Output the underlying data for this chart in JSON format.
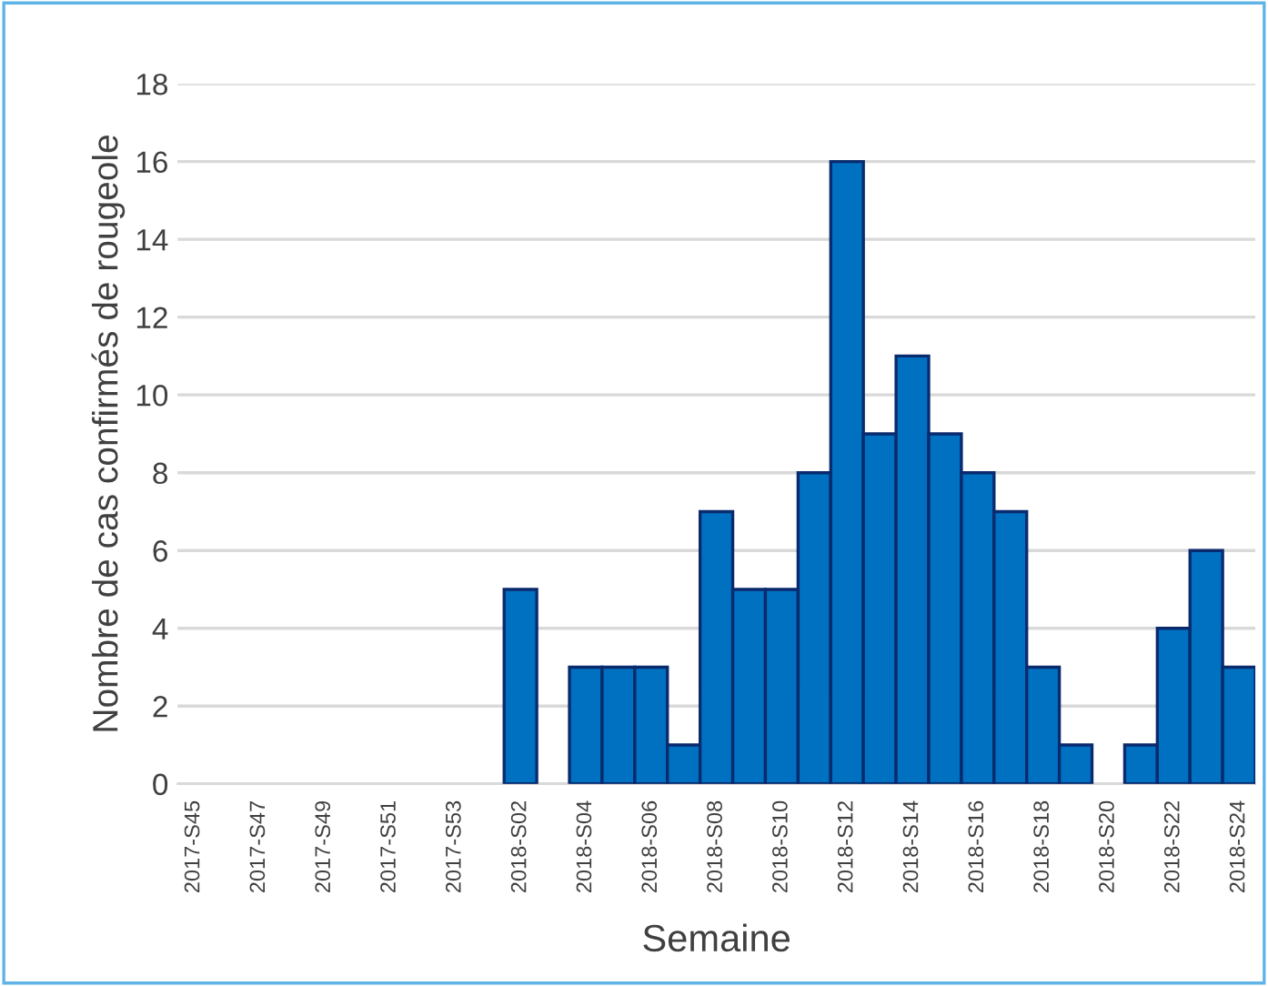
{
  "chart_data": {
    "type": "bar",
    "xlabel": "Semaine",
    "ylabel": "Nombre de cas confirmés de rougeole",
    "categories": [
      "2017-S45",
      null,
      "2017-S47",
      null,
      "2017-S49",
      null,
      "2017-S51",
      null,
      "2017-S53",
      null,
      "2018-S02",
      null,
      "2018-S04",
      null,
      "2018-S06",
      null,
      "2018-S08",
      null,
      "2018-S10",
      null,
      "2018-S12",
      null,
      "2018-S14",
      null,
      "2018-S16",
      null,
      "2018-S18",
      null,
      "2018-S20",
      null,
      "2018-S22",
      null,
      "2018-S24"
    ],
    "series": [
      {
        "color": "#0070c0",
        "values": [
          0,
          0,
          0,
          0,
          0,
          0,
          0,
          0,
          0,
          0,
          5,
          0,
          3,
          3,
          3,
          1,
          7,
          5,
          5,
          8,
          16,
          9,
          11,
          9,
          8,
          7,
          3,
          1,
          0,
          1,
          4,
          6,
          3
        ]
      }
    ],
    "ylim": [
      0,
      18
    ],
    "yticks": [
      0,
      2,
      4,
      6,
      8,
      10,
      12,
      14,
      16,
      18
    ],
    "grid": "y"
  }
}
